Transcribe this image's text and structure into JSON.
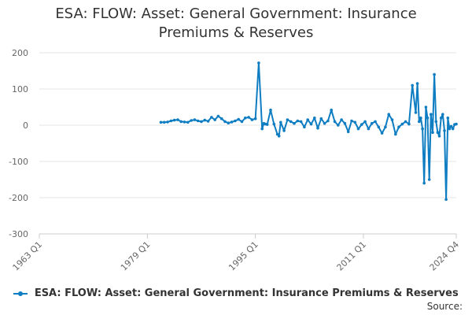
{
  "chart_data": {
    "type": "line",
    "title": "ESA: FLOW: Asset: General Government: Insurance Premiums & Reserves",
    "xlabel": "",
    "ylabel": "",
    "x_ticks": [
      "1963 Q1",
      "1979 Q1",
      "1995 Q1",
      "2011 Q1",
      "2024 Q4"
    ],
    "y_ticks": [
      200,
      100,
      0,
      -100,
      -200,
      -300
    ],
    "ylim": [
      -300,
      200
    ],
    "xlim": [
      "1963 Q1",
      "2024 Q4"
    ],
    "grid": "horizontal",
    "legend_position": "bottom",
    "colors": {
      "series": "#0f7dc2"
    },
    "series": [
      {
        "name": "ESA: FLOW: Asset: General Government: Insurance Premiums & Reserves",
        "x": [
          "1981 Q1",
          "1981 Q3",
          "1982 Q1",
          "1982 Q3",
          "1983 Q1",
          "1983 Q3",
          "1984 Q1",
          "1984 Q3",
          "1985 Q1",
          "1985 Q3",
          "1986 Q1",
          "1986 Q3",
          "1987 Q1",
          "1987 Q3",
          "1988 Q1",
          "1988 Q3",
          "1989 Q1",
          "1989 Q3",
          "1990 Q1",
          "1990 Q3",
          "1991 Q1",
          "1991 Q3",
          "1992 Q1",
          "1992 Q3",
          "1993 Q1",
          "1993 Q3",
          "1994 Q1",
          "1994 Q3",
          "1995 Q1",
          "1995 Q3",
          "1996 Q1",
          "1996 Q2",
          "1996 Q3",
          "1996 Q4",
          "1997 Q2",
          "1997 Q4",
          "1998 Q2",
          "1998 Q3",
          "1998 Q4",
          "1999 Q2",
          "1999 Q4",
          "2000 Q2",
          "2000 Q4",
          "2001 Q2",
          "2001 Q4",
          "2002 Q2",
          "2002 Q4",
          "2003 Q2",
          "2003 Q4",
          "2004 Q2",
          "2004 Q4",
          "2005 Q2",
          "2005 Q4",
          "2006 Q2",
          "2006 Q4",
          "2007 Q2",
          "2007 Q4",
          "2008 Q2",
          "2008 Q4",
          "2009 Q2",
          "2009 Q4",
          "2010 Q2",
          "2010 Q4",
          "2011 Q2",
          "2011 Q4",
          "2012 Q2",
          "2012 Q4",
          "2013 Q2",
          "2013 Q4",
          "2014 Q2",
          "2014 Q4",
          "2015 Q2",
          "2015 Q4",
          "2016 Q2",
          "2016 Q4",
          "2017 Q2",
          "2017 Q4",
          "2018 Q2",
          "2018 Q4",
          "2019 Q1",
          "2019 Q2",
          "2019 Q3",
          "2019 Q4",
          "2020 Q1",
          "2020 Q2",
          "2020 Q3",
          "2020 Q4",
          "2021 Q1",
          "2021 Q2",
          "2021 Q3",
          "2021 Q4",
          "2022 Q1",
          "2022 Q2",
          "2022 Q3",
          "2022 Q4",
          "2023 Q1",
          "2023 Q2",
          "2023 Q3",
          "2023 Q4",
          "2024 Q1",
          "2024 Q2",
          "2024 Q3",
          "2024 Q4"
        ],
        "values": [
          8,
          8,
          9,
          12,
          14,
          15,
          10,
          9,
          8,
          13,
          15,
          12,
          10,
          14,
          11,
          22,
          15,
          25,
          18,
          10,
          6,
          9,
          12,
          16,
          10,
          20,
          22,
          15,
          18,
          172,
          -10,
          5,
          3,
          2,
          42,
          3,
          -25,
          -30,
          8,
          -15,
          15,
          10,
          5,
          12,
          10,
          -5,
          15,
          3,
          20,
          -8,
          18,
          5,
          12,
          42,
          10,
          0,
          15,
          5,
          -18,
          12,
          8,
          -10,
          2,
          10,
          -10,
          5,
          10,
          -5,
          -22,
          -5,
          30,
          15,
          -25,
          -5,
          3,
          10,
          3,
          110,
          35,
          115,
          10,
          20,
          -10,
          -160,
          50,
          20,
          -150,
          30,
          -20,
          140,
          10,
          -20,
          -30,
          20,
          30,
          -15,
          -205,
          20,
          -10,
          -3,
          -10,
          2,
          3
        ]
      }
    ],
    "source_label": "Source:"
  }
}
